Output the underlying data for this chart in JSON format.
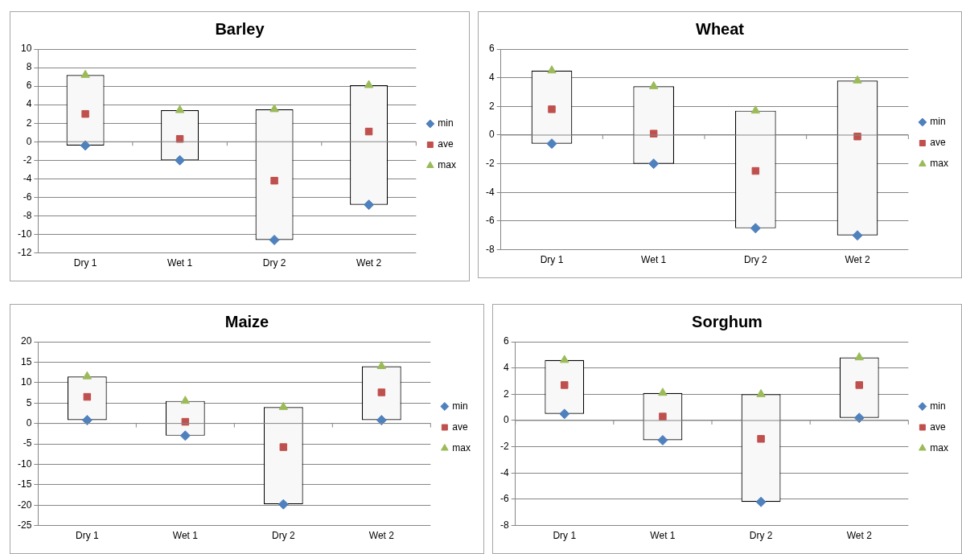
{
  "chart_data": [
    {
      "type": "bar",
      "title": "Barley",
      "categories": [
        "Dry 1",
        "Wet 1",
        "Dry 2",
        "Wet 2"
      ],
      "ylim": [
        -12,
        10
      ],
      "yticks": [
        -12,
        -10,
        -8,
        -6,
        -4,
        -2,
        0,
        2,
        4,
        6,
        8,
        10
      ],
      "grid": "y",
      "legend": "right",
      "series": [
        {
          "type": "bar",
          "color": "#f8f8f8",
          "base": [
            -0.4,
            -2,
            -10.6,
            -6.8
          ],
          "values": [
            7.6,
            5.4,
            14.1,
            12.9
          ]
        },
        {
          "type": "scatter",
          "name": "min",
          "color": "#4f81bd",
          "marker": "diamond",
          "x": [
            "Dry 1",
            "Wet 1",
            "Dry 2",
            "Wet 2"
          ],
          "values": [
            -0.4,
            -2,
            -10.6,
            -6.8
          ]
        },
        {
          "type": "scatter",
          "name": "ave",
          "color": "#c0504d",
          "marker": "square",
          "x": [
            "Dry 1",
            "Wet 1",
            "Dry 2",
            "Wet 2"
          ],
          "values": [
            3,
            0.3,
            -4.2,
            1.1
          ]
        },
        {
          "type": "scatter",
          "name": "max",
          "color": "#9bbb59",
          "marker": "triangle",
          "x": [
            "Dry 1",
            "Wet 1",
            "Dry 2",
            "Wet 2"
          ],
          "values": [
            7.2,
            3.4,
            3.5,
            6.1
          ]
        }
      ]
    },
    {
      "type": "bar",
      "title": "Wheat",
      "categories": [
        "Dry 1",
        "Wet 1",
        "Dry 2",
        "Wet 2"
      ],
      "ylim": [
        -8,
        6
      ],
      "yticks": [
        -8,
        -6,
        -4,
        -2,
        0,
        2,
        4,
        6
      ],
      "grid": "y",
      "legend": "right",
      "series": [
        {
          "type": "bar",
          "color": "#f8f8f8",
          "base": [
            -0.6,
            -2,
            -6.5,
            -7
          ],
          "values": [
            5.1,
            5.4,
            8.2,
            10.8
          ]
        },
        {
          "type": "scatter",
          "name": "min",
          "color": "#4f81bd",
          "marker": "diamond",
          "x": [
            "Dry 1",
            "Wet 1",
            "Dry 2",
            "Wet 2"
          ],
          "values": [
            -0.6,
            -2,
            -6.5,
            -7
          ]
        },
        {
          "type": "scatter",
          "name": "ave",
          "color": "#c0504d",
          "marker": "square",
          "x": [
            "Dry 1",
            "Wet 1",
            "Dry 2",
            "Wet 2"
          ],
          "values": [
            1.8,
            0.1,
            -2.5,
            -0.1
          ]
        },
        {
          "type": "scatter",
          "name": "max",
          "color": "#9bbb59",
          "marker": "triangle",
          "x": [
            "Dry 1",
            "Wet 1",
            "Dry 2",
            "Wet 2"
          ],
          "values": [
            4.5,
            3.4,
            1.7,
            3.8
          ]
        }
      ]
    },
    {
      "type": "bar",
      "title": "Maize",
      "categories": [
        "Dry 1",
        "Wet 1",
        "Dry 2",
        "Wet 2"
      ],
      "ylim": [
        -25,
        20
      ],
      "yticks": [
        -25,
        -20,
        -15,
        -10,
        -5,
        0,
        5,
        10,
        15,
        20
      ],
      "grid": "y",
      "legend": "right",
      "series": [
        {
          "type": "bar",
          "color": "#f8f8f8",
          "base": [
            0.8,
            -3,
            -19.8,
            0.8
          ],
          "values": [
            10.7,
            8.5,
            23.8,
            13.2
          ]
        },
        {
          "type": "scatter",
          "name": "min",
          "color": "#4f81bd",
          "marker": "diamond",
          "x": [
            "Dry 1",
            "Wet 1",
            "Dry 2",
            "Wet 2"
          ],
          "values": [
            0.8,
            -3,
            -19.8,
            0.8
          ]
        },
        {
          "type": "scatter",
          "name": "ave",
          "color": "#c0504d",
          "marker": "square",
          "x": [
            "Dry 1",
            "Wet 1",
            "Dry 2",
            "Wet 2"
          ],
          "values": [
            6.5,
            0.4,
            -5.8,
            7.6
          ]
        },
        {
          "type": "scatter",
          "name": "max",
          "color": "#9bbb59",
          "marker": "triangle",
          "x": [
            "Dry 1",
            "Wet 1",
            "Dry 2",
            "Wet 2"
          ],
          "values": [
            11.5,
            5.5,
            4,
            14
          ]
        }
      ]
    },
    {
      "type": "bar",
      "title": "Sorghum",
      "categories": [
        "Dry 1",
        "Wet 1",
        "Dry 2",
        "Wet 2"
      ],
      "ylim": [
        -8,
        6
      ],
      "yticks": [
        -8,
        -6,
        -4,
        -2,
        0,
        2,
        4,
        6
      ],
      "grid": "y",
      "legend": "right",
      "series": [
        {
          "type": "bar",
          "color": "#f8f8f8",
          "base": [
            0.5,
            -1.5,
            -6.2,
            0.2
          ],
          "values": [
            4.1,
            3.6,
            8.2,
            4.6
          ]
        },
        {
          "type": "scatter",
          "name": "min",
          "color": "#4f81bd",
          "marker": "diamond",
          "x": [
            "Dry 1",
            "Wet 1",
            "Dry 2",
            "Wet 2"
          ],
          "values": [
            0.5,
            -1.5,
            -6.2,
            0.2
          ]
        },
        {
          "type": "scatter",
          "name": "ave",
          "color": "#c0504d",
          "marker": "square",
          "x": [
            "Dry 1",
            "Wet 1",
            "Dry 2",
            "Wet 2"
          ],
          "values": [
            2.7,
            0.3,
            -1.4,
            2.7
          ]
        },
        {
          "type": "scatter",
          "name": "max",
          "color": "#9bbb59",
          "marker": "triangle",
          "x": [
            "Dry 1",
            "Wet 1",
            "Dry 2",
            "Wet 2"
          ],
          "values": [
            4.6,
            2.1,
            2,
            4.8
          ]
        }
      ]
    }
  ]
}
